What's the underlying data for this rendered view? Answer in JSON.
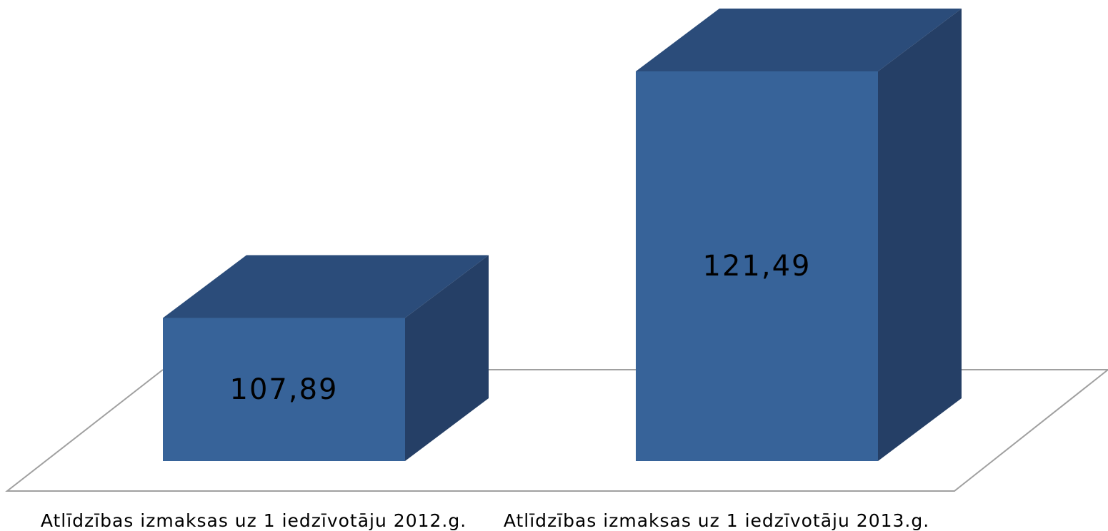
{
  "chart_data": {
    "type": "bar3d",
    "categories": [
      "Atlīdzības izmaksas uz 1 iedzīvotāju  2012.g.",
      "Atlīdzības izmaksas uz 1 iedzīvotāju  2013.g."
    ],
    "values": [
      107.89,
      121.49
    ],
    "value_labels": [
      "107,89",
      "121,49"
    ],
    "color": "#376399",
    "ylim": [
      100,
      122
    ]
  }
}
